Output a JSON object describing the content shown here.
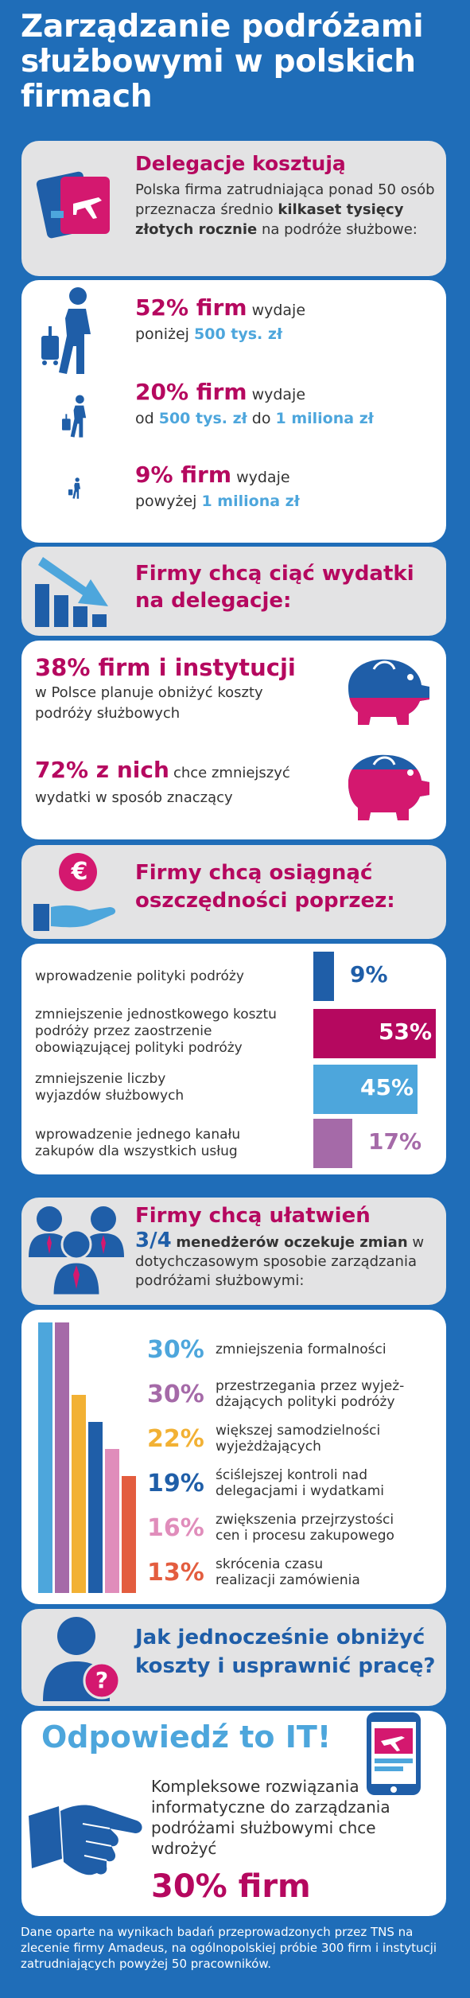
{
  "title": "Zarządzanie podróżami służbowymi w polskich firmach",
  "s1": {
    "heading": "Delegacje kosztują",
    "text_before": "Polska firma zatrudniająca ponad 50 osób przeznacza średnio",
    "text_bold": "kilkaset tysięcy złotych rocznie",
    "text_after": "na podróże służbowe:",
    "stats": [
      {
        "pct": "52% firm",
        "w1": "wydaje",
        "w2": "poniżej",
        "amount": "500 tys. zł",
        "mid": "",
        "amount2": ""
      },
      {
        "pct": "20% firm",
        "w1": "wydaje",
        "w2": "od",
        "amount": "500 tys. zł",
        "mid": "do",
        "amount2": "1 miliona zł"
      },
      {
        "pct": "9% firm",
        "w1": "wydaje",
        "w2": "powyżej",
        "amount": "1 miliona zł",
        "mid": "",
        "amount2": ""
      }
    ]
  },
  "s2": {
    "heading_line1": "Firmy chcą ciąć wydatki",
    "heading_line2": "na delegacje:",
    "stat1_bold": "38% firm i instytucji",
    "stat1_text": "w Polsce planuje obniżyć koszty podróży służbowych",
    "stat2_bold": "72% z nich",
    "stat2_text1": "chce zmniejszyć",
    "stat2_text2": "wydatki w sposób znaczący"
  },
  "s3": {
    "heading_line1": "Firmy chcą osiągnąć",
    "heading_line2": "oszczędności poprzez:",
    "euro": "€",
    "bars": [
      {
        "label": "wprowadzenie polityki podróży",
        "pct": "9%",
        "value": 9,
        "color": "#1f5ea8",
        "text_color": "#1f5ea8"
      },
      {
        "label": "zmniejszenie jednostkowego kosztu podróży przez zaostrzenie obowiązującej polityki podróży",
        "pct": "53%",
        "value": 53,
        "color": "#b5085f",
        "text_color": "#ffffff"
      },
      {
        "label": "zmniejszenie liczby wyjazdów służbowych",
        "pct": "45%",
        "value": 45,
        "color": "#4da6dc",
        "text_color": "#ffffff"
      },
      {
        "label": "wprowadzenie jednego kanału zakupów dla wszystkich usług",
        "pct": "17%",
        "value": 17,
        "color": "#a56aa8",
        "text_color": "#a56aa8"
      }
    ]
  },
  "s4": {
    "heading": "Firmy chcą ułatwień",
    "fraction": "3/4",
    "text_bold": "menedżerów oczekuje zmian",
    "text_rest": "w dotychczasowym sposobie zarządzania podróżami służbowymi:",
    "reasons": [
      {
        "pct": "30%",
        "value": 30,
        "color": "#4da6dc",
        "line1": "zmniejszenia formalności",
        "line2": ""
      },
      {
        "pct": "30%",
        "value": 30,
        "color": "#a56aa8",
        "line1": "przestrzegania przez wyjeż-",
        "line2": "dżających polityki podróży"
      },
      {
        "pct": "22%",
        "value": 22,
        "color": "#f2b134",
        "line1": "większej samodzielności",
        "line2": "wyjeżdżających"
      },
      {
        "pct": "19%",
        "value": 19,
        "color": "#1f5ea8",
        "line1": "ściślejszej kontroli nad",
        "line2": "delegacjami i wydatkami"
      },
      {
        "pct": "16%",
        "value": 16,
        "color": "#e08dbb",
        "line1": "zwiększenia przejrzystości",
        "line2": "cen i procesu zakupowego"
      },
      {
        "pct": "13%",
        "value": 13,
        "color": "#e35d3f",
        "line1": "skrócenia czasu",
        "line2": "realizacji zamówienia"
      }
    ]
  },
  "s5": {
    "question_line1": "Jak jednocześnie obniżyć",
    "question_line2": "koszty i usprawnić pracę?",
    "qmark": "?",
    "answer": "Odpowiedź to IT!",
    "text": "Kompleksowe rozwiązania informatyczne do zarządzania podróżami służbowymi chce wdrożyć",
    "result": "30% firm"
  },
  "footer": "Dane oparte na wynikach badań przeprowadzonych przez TNS na zlecenie firmy Amadeus, na ogólnopolskiej próbie 300 firm i instytucji zatrudniających powyżej 50 pracowników."
}
